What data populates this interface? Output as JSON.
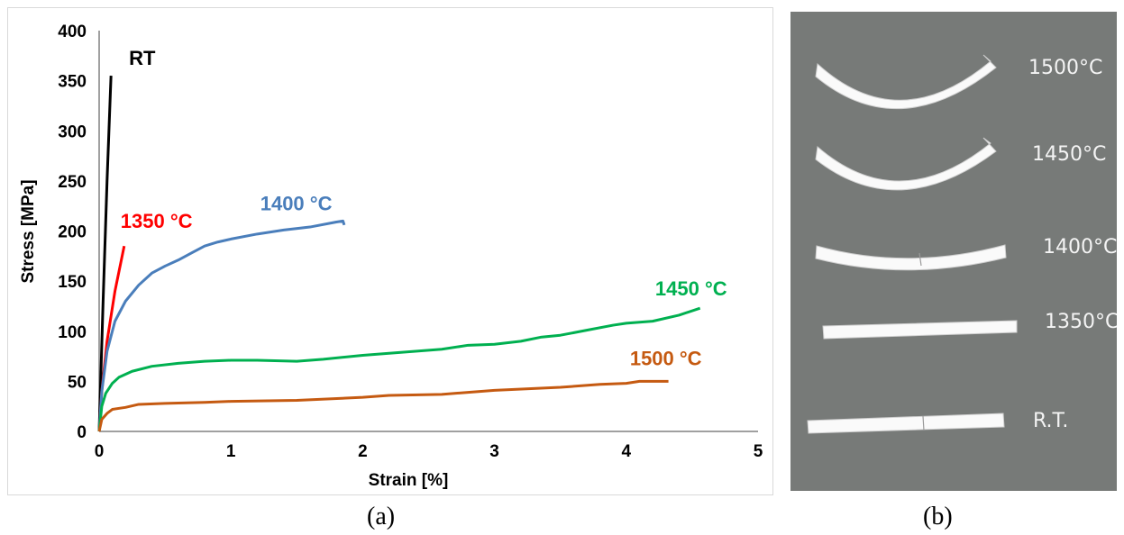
{
  "chart_data": {
    "type": "line",
    "xlabel": "Strain [%]",
    "ylabel": "Stress [MPa]",
    "xlim": [
      0,
      5
    ],
    "ylim": [
      0,
      400
    ],
    "x_ticks": [
      "0",
      "1",
      "2",
      "3",
      "4",
      "5"
    ],
    "y_ticks": [
      "0",
      "50",
      "100",
      "150",
      "200",
      "250",
      "300",
      "350",
      "400"
    ],
    "grid": false,
    "series": [
      {
        "name": "RT",
        "color": "#000000",
        "points": [
          [
            0,
            0
          ],
          [
            0.03,
            130
          ],
          [
            0.06,
            250
          ],
          [
            0.09,
            355
          ]
        ]
      },
      {
        "name": "1350 °C",
        "color": "#ff0000",
        "points": [
          [
            0,
            0
          ],
          [
            0.02,
            40
          ],
          [
            0.06,
            90
          ],
          [
            0.12,
            140
          ],
          [
            0.19,
            185
          ]
        ]
      },
      {
        "name": "1400 °C",
        "color": "#4a7ebb",
        "points": [
          [
            0,
            0
          ],
          [
            0.02,
            40
          ],
          [
            0.06,
            80
          ],
          [
            0.12,
            110
          ],
          [
            0.2,
            130
          ],
          [
            0.3,
            146
          ],
          [
            0.4,
            158
          ],
          [
            0.5,
            165
          ],
          [
            0.6,
            171
          ],
          [
            0.7,
            178
          ],
          [
            0.8,
            185
          ],
          [
            0.9,
            189
          ],
          [
            1.0,
            192
          ],
          [
            1.2,
            197
          ],
          [
            1.4,
            201
          ],
          [
            1.6,
            204
          ],
          [
            1.8,
            209
          ],
          [
            1.85,
            210
          ],
          [
            1.86,
            206
          ]
        ]
      },
      {
        "name": "1450 °C",
        "color": "#00b050",
        "points": [
          [
            0,
            0
          ],
          [
            0.02,
            25
          ],
          [
            0.05,
            38
          ],
          [
            0.1,
            48
          ],
          [
            0.15,
            54
          ],
          [
            0.25,
            60
          ],
          [
            0.4,
            65
          ],
          [
            0.6,
            68
          ],
          [
            0.8,
            70
          ],
          [
            1.0,
            71
          ],
          [
            1.2,
            71
          ],
          [
            1.5,
            70
          ],
          [
            1.7,
            72
          ],
          [
            2.0,
            76
          ],
          [
            2.3,
            79
          ],
          [
            2.6,
            82
          ],
          [
            2.8,
            86
          ],
          [
            3.0,
            87
          ],
          [
            3.2,
            90
          ],
          [
            3.35,
            94
          ],
          [
            3.5,
            96
          ],
          [
            3.7,
            101
          ],
          [
            3.9,
            106
          ],
          [
            4.0,
            108
          ],
          [
            4.2,
            110
          ],
          [
            4.4,
            116
          ],
          [
            4.56,
            123
          ]
        ]
      },
      {
        "name": "1500 °C",
        "color": "#c55a11",
        "points": [
          [
            0,
            0
          ],
          [
            0.02,
            12
          ],
          [
            0.06,
            18
          ],
          [
            0.1,
            22
          ],
          [
            0.2,
            24
          ],
          [
            0.3,
            27
          ],
          [
            0.5,
            28
          ],
          [
            0.8,
            29
          ],
          [
            1.0,
            30
          ],
          [
            1.5,
            31
          ],
          [
            2.0,
            34
          ],
          [
            2.2,
            36
          ],
          [
            2.6,
            37
          ],
          [
            2.8,
            39
          ],
          [
            3.0,
            41
          ],
          [
            3.5,
            44
          ],
          [
            3.8,
            47
          ],
          [
            4.0,
            48
          ],
          [
            4.1,
            50
          ],
          [
            4.32,
            50
          ]
        ]
      }
    ]
  },
  "captions": {
    "a": "(a)",
    "b": "(b)"
  },
  "photo": {
    "labels": [
      "1500°C",
      "1450°C",
      "1400°C",
      "1350°C",
      "R.T."
    ]
  }
}
